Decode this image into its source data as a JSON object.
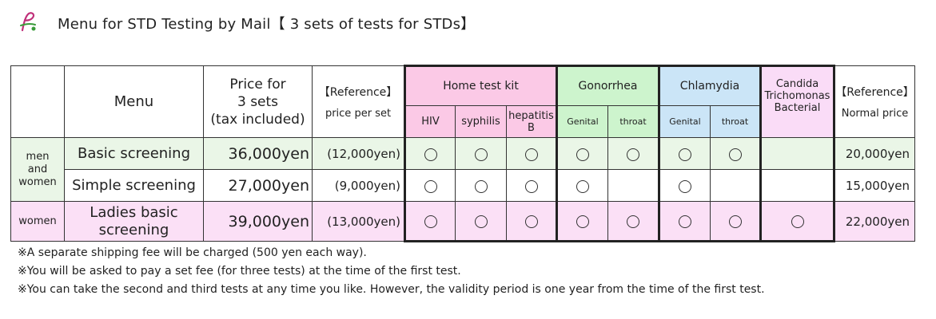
{
  "header": {
    "title": "Menu for STD Testing by Mail【 3 sets of tests for STDs】"
  },
  "table": {
    "col_menu": "Menu",
    "col_price_l1": "Price for",
    "col_price_l2": "3 sets",
    "col_price_l3": "(tax included)",
    "col_ref_top": "【Reference】",
    "col_ref_bottom": "price per set",
    "group_home": "Home test kit",
    "group_gonorrhea": "Gonorrhea",
    "group_chlamydia": "Chlamydia",
    "group_candida_l1": "Candida",
    "group_candida_l2": "Trichomonas",
    "group_candida_l3": "Bacterial",
    "col_normal_top": "【Reference】",
    "col_normal_bottom": "Normal price",
    "sub_hiv": "HIV",
    "sub_syphilis": "syphilis",
    "sub_hepatitis_l1": "hepatitis",
    "sub_hepatitis_l2": "B",
    "sub_gon_genital": "Genital",
    "sub_gon_throat": "throat",
    "sub_chl_genital": "Genital",
    "sub_chl_throat": "throat",
    "cat_menwomen_l1": "men",
    "cat_menwomen_l2": "and",
    "cat_menwomen_l3": "women",
    "cat_women": "women",
    "rows": [
      {
        "menu": "Basic screening",
        "price": "36,000yen",
        "per_set": "(12,000yen)",
        "normal": "20,000yen",
        "marks": [
          "○",
          "○",
          "○",
          "○",
          "○",
          "○",
          "○",
          ""
        ]
      },
      {
        "menu": "Simple screening",
        "price": "27,000yen",
        "per_set": "(9,000yen)",
        "normal": "15,000yen",
        "marks": [
          "○",
          "○",
          "○",
          "○",
          "",
          "○",
          "",
          ""
        ]
      },
      {
        "menu_l1": "Ladies basic",
        "menu_l2": "screening",
        "price": "39,000yen",
        "per_set": "(13,000yen)",
        "normal": "22,000yen",
        "marks": [
          "○",
          "○",
          "○",
          "○",
          "○",
          "○",
          "○",
          "○"
        ]
      }
    ]
  },
  "notes": [
    "※A separate shipping fee will be charged (500 yen each way).",
    "※You will be asked to pay a set fee (for three tests) at the time of the first test.",
    "※You can take the second and third tests at any time you like. However, the validity period is one year from the time of the first test."
  ],
  "colors": {
    "home_kit": "#fbc9e6",
    "gonorrhea": "#cdf4cd",
    "chlamydia": "#cbe5f7",
    "candida": "#fadcf7",
    "row_general": "#eaf6e7",
    "row_women": "#fbe0f6"
  }
}
